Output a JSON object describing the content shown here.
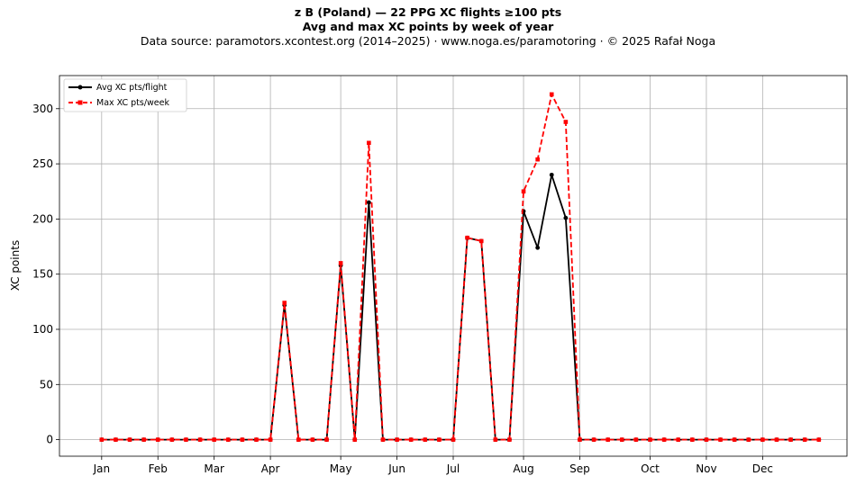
{
  "chart_data": {
    "type": "line",
    "title": "z B (Poland)  —  22 PPG XC flights ≥100 pts",
    "title_line2": "Avg and max XC points by week of year",
    "subtitle": "Data source: paramotors.xcontest.org (2014–2025)  ·  www.noga.es/paramotoring  ·  © 2025 Rafał Noga",
    "ylabel": "XC points",
    "xlabel": "",
    "x_domain": [
      -2,
      54
    ],
    "ylim": [
      -15,
      330
    ],
    "yticks": [
      0,
      50,
      100,
      150,
      200,
      250,
      300
    ],
    "month_ticks": [
      {
        "label": "Jan",
        "week": 1
      },
      {
        "label": "Feb",
        "week": 5
      },
      {
        "label": "Mar",
        "week": 9
      },
      {
        "label": "Apr",
        "week": 13
      },
      {
        "label": "May",
        "week": 18
      },
      {
        "label": "Jun",
        "week": 22
      },
      {
        "label": "Jul",
        "week": 26
      },
      {
        "label": "Aug",
        "week": 31
      },
      {
        "label": "Sep",
        "week": 35
      },
      {
        "label": "Oct",
        "week": 40
      },
      {
        "label": "Nov",
        "week": 44
      },
      {
        "label": "Dec",
        "week": 48
      }
    ],
    "grid": true,
    "legend_position": "top-left",
    "x": [
      1,
      2,
      3,
      4,
      5,
      6,
      7,
      8,
      9,
      10,
      11,
      12,
      13,
      14,
      15,
      16,
      17,
      18,
      19,
      20,
      21,
      22,
      23,
      24,
      25,
      26,
      27,
      28,
      29,
      30,
      31,
      32,
      33,
      34,
      35,
      36,
      37,
      38,
      39,
      40,
      41,
      42,
      43,
      44,
      45,
      46,
      47,
      48,
      49,
      50,
      51,
      52
    ],
    "series": [
      {
        "name": "Avg XC pts/flight",
        "color": "#000000",
        "style": "solid-circle",
        "values": [
          0,
          0,
          0,
          0,
          0,
          0,
          0,
          0,
          0,
          0,
          0,
          0,
          0,
          122,
          0,
          0,
          0,
          158,
          0,
          215,
          0,
          0,
          0,
          0,
          0,
          0,
          183,
          180,
          0,
          0,
          207,
          174,
          240,
          201,
          0,
          0,
          0,
          0,
          0,
          0,
          0,
          0,
          0,
          0,
          0,
          0,
          0,
          0,
          0,
          0,
          0,
          0
        ]
      },
      {
        "name": "Max XC pts/week",
        "color": "#ff0000",
        "style": "dashed-square",
        "values": [
          0,
          0,
          0,
          0,
          0,
          0,
          0,
          0,
          0,
          0,
          0,
          0,
          0,
          124,
          0,
          0,
          0,
          160,
          0,
          269,
          0,
          0,
          0,
          0,
          0,
          0,
          183,
          180,
          0,
          0,
          225,
          254,
          313,
          288,
          0,
          0,
          0,
          0,
          0,
          0,
          0,
          0,
          0,
          0,
          0,
          0,
          0,
          0,
          0,
          0,
          0,
          0
        ]
      }
    ]
  }
}
